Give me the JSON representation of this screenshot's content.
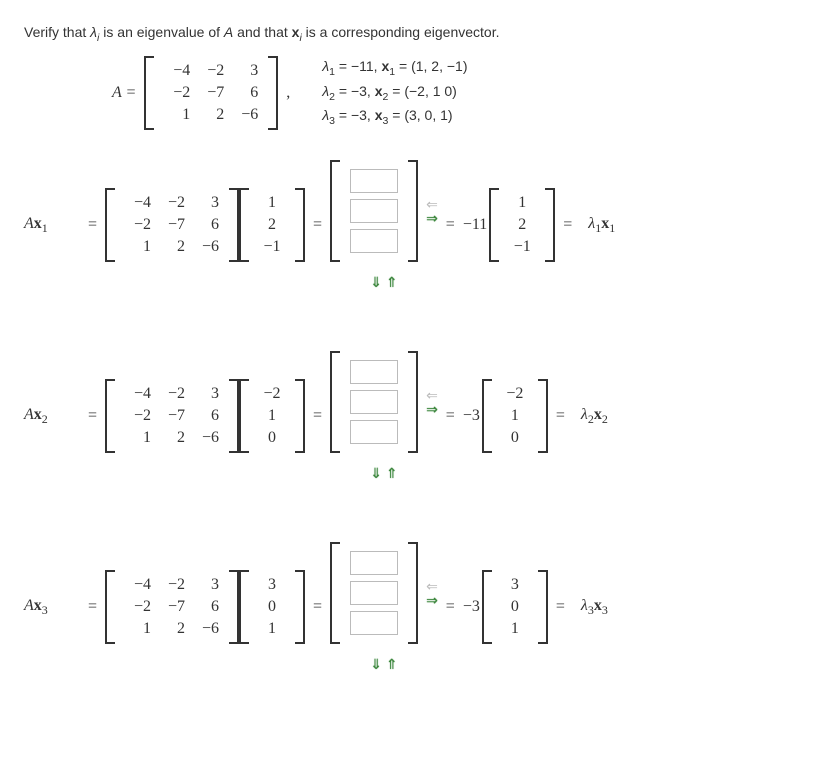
{
  "prompt": {
    "prefix": "Verify that ",
    "lambda": "λ",
    "i": "i",
    "mid1": " is an eigenvalue of ",
    "A": "A",
    "mid2": " and that ",
    "x": "x",
    "mid3": " is a corresponding eigenvector."
  },
  "A_label": "A =",
  "A_matrix": {
    "rows": [
      [
        "−4",
        "−2",
        "3"
      ],
      [
        "−2",
        "−7",
        "6"
      ],
      [
        "1",
        "2",
        "−6"
      ]
    ]
  },
  "eig_lines": [
    {
      "lambda": "λ",
      "sub": "1",
      "eq": " = −11, ",
      "x": "x",
      "xsub": "1",
      "vec": " = (1, 2, −1)"
    },
    {
      "lambda": "λ",
      "sub": "2",
      "eq": " = −3, ",
      "x": "x",
      "xsub": "2",
      "vec": " = (−2, 1 0)"
    },
    {
      "lambda": "λ",
      "sub": "3",
      "eq": " = −3, ",
      "x": "x",
      "xsub": "3",
      "vec": " = (3, 0, 1)"
    }
  ],
  "eqs": [
    {
      "lhs": "Ax",
      "lhs_sub": "1",
      "xvec": [
        "1",
        "2",
        "−1"
      ],
      "scalar": "−11",
      "result_vec": [
        "1",
        "2",
        "−1"
      ],
      "rlabel_l": "λ",
      "rlabel_sub": "1",
      "rlabel_x": "x",
      "rlabel_xsub": "1"
    },
    {
      "lhs": "Ax",
      "lhs_sub": "2",
      "xvec": [
        "−2",
        "1",
        "0"
      ],
      "scalar": "−3",
      "result_vec": [
        "−2",
        "1",
        "0"
      ],
      "rlabel_l": "λ",
      "rlabel_sub": "2",
      "rlabel_x": "x",
      "rlabel_xsub": "2"
    },
    {
      "lhs": "Ax",
      "lhs_sub": "3",
      "xvec": [
        "3",
        "0",
        "1"
      ],
      "scalar": "−3",
      "result_vec": [
        "3",
        "0",
        "1"
      ],
      "rlabel_l": "λ",
      "rlabel_sub": "3",
      "rlabel_x": "x",
      "rlabel_xsub": "3"
    }
  ],
  "symbols": {
    "eq": "=",
    "comma": ",",
    "arrow_left": "⇐",
    "arrow_right": "⇒",
    "arrow_down": "⇓",
    "arrow_up": "⇑"
  },
  "styling": {
    "text_color": "#333333",
    "arrow_green": "#3a853b",
    "arrow_gray": "#bbbbbb",
    "input_border": "#bbbbbb",
    "font_family": "Arial, sans-serif",
    "math_font": "Times New Roman, serif",
    "body_fontsize": 14,
    "math_fontsize": 16
  }
}
